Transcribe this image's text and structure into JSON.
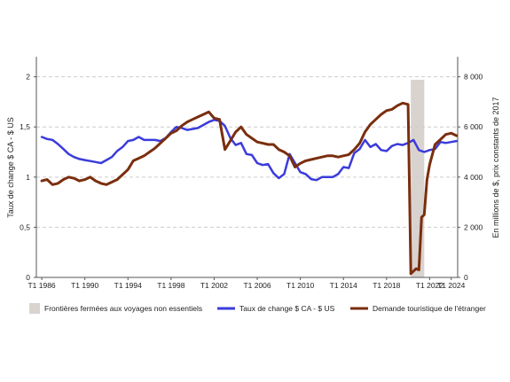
{
  "chart_data": {
    "type": "line",
    "ylabel_left": "Taux de change $ CA - $ US",
    "ylabel_right": "En millions de $, prix constants de 2017",
    "x_tick_labels": [
      "T1 1986",
      "T1 1990",
      "T1 1994",
      "T1 1998",
      "T1 2002",
      "T1 2006",
      "T1 2010",
      "T1 2014",
      "T1 2018",
      "T1 2022",
      "T1 2024"
    ],
    "x_tick_years": [
      1986,
      1990,
      1994,
      1998,
      2002,
      2006,
      2010,
      2014,
      2018,
      2022,
      2024
    ],
    "xlim": [
      1985.5,
      2024.6
    ],
    "ylim_left": [
      0,
      2.2
    ],
    "ylim_right": [
      0,
      8800
    ],
    "left_ticks": [
      0,
      0.5,
      1,
      1.5,
      2
    ],
    "left_tick_labels": [
      "0",
      "0,5",
      "1",
      "1,5",
      "2"
    ],
    "right_ticks": [
      0,
      2000,
      4000,
      6000,
      8000
    ],
    "right_tick_labels": [
      "0",
      "2 000",
      "4 000",
      "6 000",
      "8 000"
    ],
    "grid": "horizontal dashed",
    "legend_position": "bottom",
    "shaded_period": {
      "label": "Frontières fermées aux voyages non essentiels",
      "x_start": 2020.25,
      "x_end": 2021.5,
      "color": "#d9d3cf"
    },
    "series": [
      {
        "name": "Taux de change $ CA - $ US",
        "axis": "left",
        "color": "#3b3bdc",
        "points": [
          [
            1986.0,
            1.4
          ],
          [
            1986.5,
            1.38
          ],
          [
            1987.0,
            1.37
          ],
          [
            1987.5,
            1.33
          ],
          [
            1988.0,
            1.28
          ],
          [
            1988.5,
            1.23
          ],
          [
            1989.0,
            1.2
          ],
          [
            1989.5,
            1.18
          ],
          [
            1990.0,
            1.17
          ],
          [
            1990.5,
            1.16
          ],
          [
            1991.0,
            1.15
          ],
          [
            1991.5,
            1.14
          ],
          [
            1992.0,
            1.17
          ],
          [
            1992.5,
            1.2
          ],
          [
            1993.0,
            1.26
          ],
          [
            1993.5,
            1.3
          ],
          [
            1994.0,
            1.36
          ],
          [
            1994.5,
            1.37
          ],
          [
            1995.0,
            1.4
          ],
          [
            1995.5,
            1.37
          ],
          [
            1996.0,
            1.37
          ],
          [
            1996.5,
            1.37
          ],
          [
            1997.0,
            1.36
          ],
          [
            1997.5,
            1.39
          ],
          [
            1998.0,
            1.45
          ],
          [
            1998.5,
            1.5
          ],
          [
            1999.0,
            1.49
          ],
          [
            1999.5,
            1.47
          ],
          [
            2000.0,
            1.48
          ],
          [
            2000.5,
            1.49
          ],
          [
            2001.0,
            1.52
          ],
          [
            2001.5,
            1.55
          ],
          [
            2002.0,
            1.57
          ],
          [
            2002.5,
            1.56
          ],
          [
            2003.0,
            1.51
          ],
          [
            2003.5,
            1.39
          ],
          [
            2004.0,
            1.32
          ],
          [
            2004.5,
            1.34
          ],
          [
            2005.0,
            1.23
          ],
          [
            2005.5,
            1.22
          ],
          [
            2006.0,
            1.14
          ],
          [
            2006.5,
            1.12
          ],
          [
            2007.0,
            1.13
          ],
          [
            2007.5,
            1.04
          ],
          [
            2008.0,
            0.99
          ],
          [
            2008.5,
            1.03
          ],
          [
            2009.0,
            1.23
          ],
          [
            2009.5,
            1.14
          ],
          [
            2010.0,
            1.05
          ],
          [
            2010.5,
            1.03
          ],
          [
            2011.0,
            0.98
          ],
          [
            2011.5,
            0.97
          ],
          [
            2012.0,
            1.0
          ],
          [
            2012.5,
            1.0
          ],
          [
            2013.0,
            1.0
          ],
          [
            2013.5,
            1.03
          ],
          [
            2014.0,
            1.1
          ],
          [
            2014.5,
            1.09
          ],
          [
            2015.0,
            1.24
          ],
          [
            2015.5,
            1.28
          ],
          [
            2016.0,
            1.37
          ],
          [
            2016.5,
            1.3
          ],
          [
            2017.0,
            1.33
          ],
          [
            2017.5,
            1.27
          ],
          [
            2018.0,
            1.26
          ],
          [
            2018.5,
            1.31
          ],
          [
            2019.0,
            1.33
          ],
          [
            2019.5,
            1.32
          ],
          [
            2020.0,
            1.34
          ],
          [
            2020.5,
            1.37
          ],
          [
            2021.0,
            1.27
          ],
          [
            2021.5,
            1.25
          ],
          [
            2022.0,
            1.27
          ],
          [
            2022.5,
            1.28
          ],
          [
            2023.0,
            1.35
          ],
          [
            2023.5,
            1.34
          ],
          [
            2024.0,
            1.35
          ],
          [
            2024.5,
            1.36
          ]
        ]
      },
      {
        "name": "Demande touristique de l'étranger",
        "axis": "right",
        "color": "#7a2e0e",
        "points": [
          [
            1986.0,
            3850
          ],
          [
            1986.5,
            3900
          ],
          [
            1987.0,
            3700
          ],
          [
            1987.5,
            3750
          ],
          [
            1988.0,
            3900
          ],
          [
            1988.5,
            4000
          ],
          [
            1989.0,
            3950
          ],
          [
            1989.5,
            3850
          ],
          [
            1990.0,
            3900
          ],
          [
            1990.5,
            4000
          ],
          [
            1991.0,
            3850
          ],
          [
            1991.5,
            3750
          ],
          [
            1992.0,
            3700
          ],
          [
            1992.5,
            3800
          ],
          [
            1993.0,
            3900
          ],
          [
            1993.5,
            4100
          ],
          [
            1994.0,
            4300
          ],
          [
            1994.5,
            4650
          ],
          [
            1995.0,
            4750
          ],
          [
            1995.5,
            4850
          ],
          [
            1996.0,
            5000
          ],
          [
            1996.5,
            5150
          ],
          [
            1997.0,
            5350
          ],
          [
            1997.5,
            5550
          ],
          [
            1998.0,
            5750
          ],
          [
            1998.5,
            5850
          ],
          [
            1999.0,
            6050
          ],
          [
            1999.5,
            6200
          ],
          [
            2000.0,
            6300
          ],
          [
            2000.5,
            6400
          ],
          [
            2001.0,
            6500
          ],
          [
            2001.5,
            6600
          ],
          [
            2002.0,
            6350
          ],
          [
            2002.5,
            6300
          ],
          [
            2003.0,
            5100
          ],
          [
            2003.5,
            5450
          ],
          [
            2004.0,
            5800
          ],
          [
            2004.5,
            6000
          ],
          [
            2005.0,
            5700
          ],
          [
            2005.5,
            5550
          ],
          [
            2006.0,
            5400
          ],
          [
            2006.5,
            5350
          ],
          [
            2007.0,
            5300
          ],
          [
            2007.5,
            5300
          ],
          [
            2008.0,
            5100
          ],
          [
            2008.5,
            5000
          ],
          [
            2009.0,
            4850
          ],
          [
            2009.5,
            4400
          ],
          [
            2010.0,
            4550
          ],
          [
            2010.5,
            4650
          ],
          [
            2011.0,
            4700
          ],
          [
            2011.5,
            4750
          ],
          [
            2012.0,
            4800
          ],
          [
            2012.5,
            4850
          ],
          [
            2013.0,
            4850
          ],
          [
            2013.5,
            4800
          ],
          [
            2014.0,
            4850
          ],
          [
            2014.5,
            4900
          ],
          [
            2015.0,
            5100
          ],
          [
            2015.5,
            5350
          ],
          [
            2016.0,
            5800
          ],
          [
            2016.5,
            6100
          ],
          [
            2017.0,
            6300
          ],
          [
            2017.5,
            6500
          ],
          [
            2018.0,
            6650
          ],
          [
            2018.5,
            6700
          ],
          [
            2019.0,
            6850
          ],
          [
            2019.5,
            6950
          ],
          [
            2020.0,
            6900
          ],
          [
            2020.25,
            150
          ],
          [
            2020.5,
            250
          ],
          [
            2020.75,
            350
          ],
          [
            2021.0,
            300
          ],
          [
            2021.25,
            2400
          ],
          [
            2021.5,
            2500
          ],
          [
            2021.75,
            3900
          ],
          [
            2022.0,
            4500
          ],
          [
            2022.5,
            5300
          ],
          [
            2023.0,
            5500
          ],
          [
            2023.5,
            5700
          ],
          [
            2024.0,
            5750
          ],
          [
            2024.5,
            5650
          ]
        ]
      }
    ]
  }
}
